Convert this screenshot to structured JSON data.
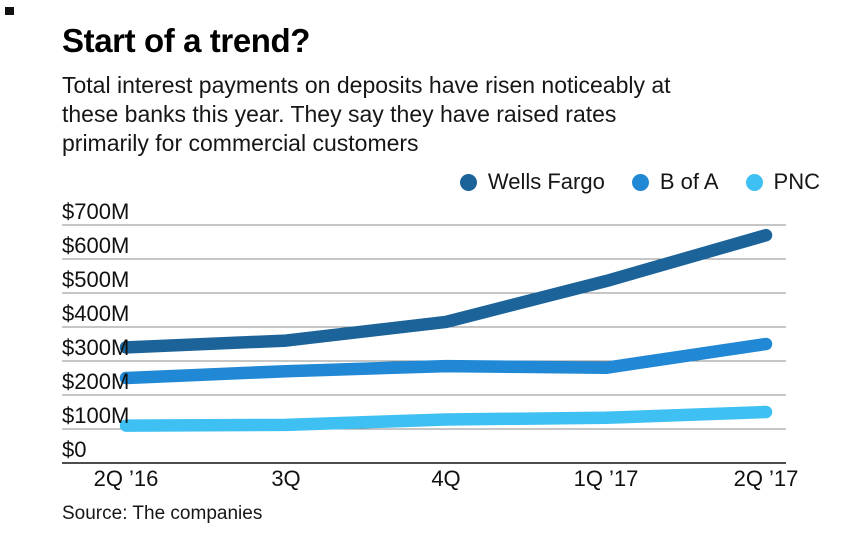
{
  "chart_data": {
    "type": "line",
    "title": "Start of a trend?",
    "subtitle_lines": [
      "Total interest payments on deposits have risen noticeably at",
      "these banks this year. They say they have raised rates",
      "primarily for commercial customers"
    ],
    "categories": [
      "2Q ’16",
      "3Q",
      "4Q",
      "1Q ’17",
      "2Q ’17"
    ],
    "series": [
      {
        "name": "Wells Fargo",
        "color": "#1C6399",
        "values": [
          340,
          360,
          415,
          535,
          670
        ]
      },
      {
        "name": "B of A",
        "color": "#2088D4",
        "values": [
          250,
          270,
          285,
          280,
          350
        ]
      },
      {
        "name": "PNC",
        "color": "#3FC0F2",
        "values": [
          110,
          112,
          128,
          133,
          150
        ]
      }
    ],
    "ylim": [
      0,
      700
    ],
    "yticks": [
      700,
      600,
      500,
      400,
      300,
      200,
      100,
      0
    ],
    "ytick_labels": [
      "$700M",
      "$600M",
      "$500M",
      "$400M",
      "$300M",
      "$200M",
      "$100M",
      "$0"
    ],
    "xlabel": "",
    "ylabel": "",
    "grid": true,
    "legend_position": "top-right",
    "grid_color": "#8E8E8E",
    "zero_axis_color": "#4D4D4D",
    "source": "Source: The companies"
  }
}
